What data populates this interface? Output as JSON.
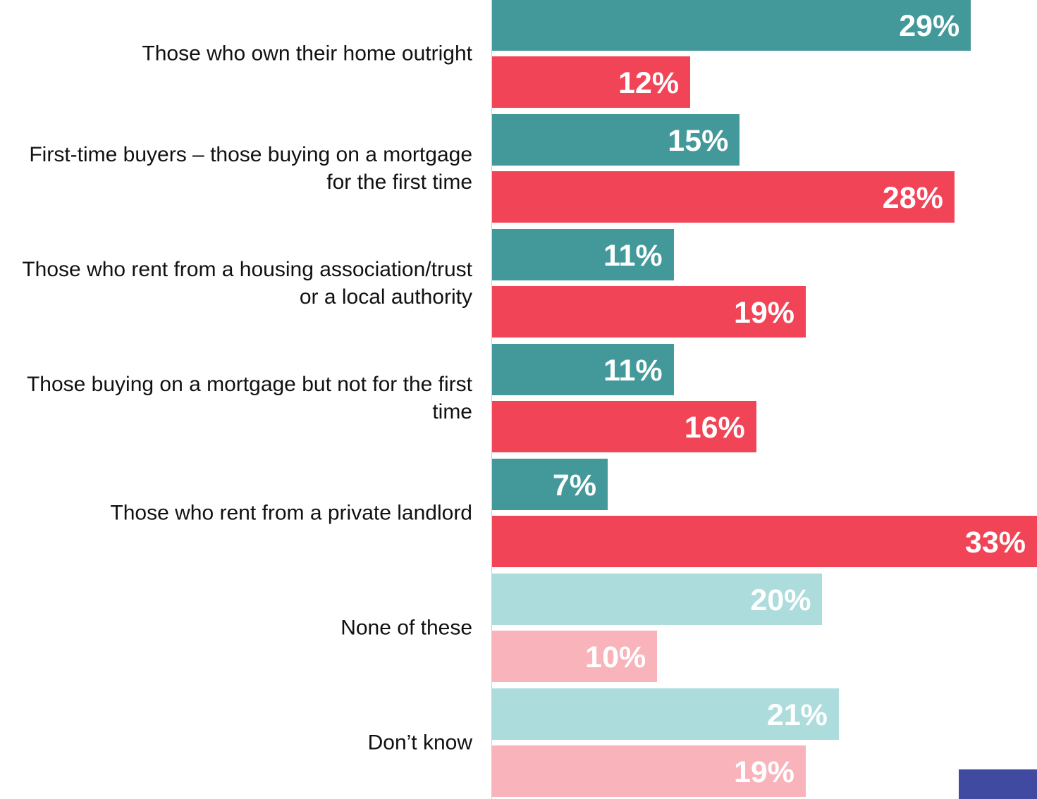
{
  "chart_data": {
    "type": "bar",
    "orientation": "horizontal",
    "categories": [
      "Those who own their home outright",
      "First-time buyers – those buying on a mortgage for the first time",
      "Those who rent from a housing association/trust or a local authority",
      "Those buying on a mortgage but not for the first time",
      "Those who rent from a private landlord",
      "None of these",
      "Don’t know"
    ],
    "series": [
      {
        "colors": [
          "#43989a",
          "#43989a",
          "#43989a",
          "#43989a",
          "#43989a",
          "#acdcdc",
          "#acdcdc"
        ],
        "values": [
          29,
          15,
          11,
          11,
          7,
          20,
          21
        ],
        "value_labels": [
          "29%",
          "15%",
          "11%",
          "11%",
          "7%",
          "20%",
          "21%"
        ]
      },
      {
        "colors": [
          "#f24457",
          "#f24457",
          "#f24457",
          "#f24457",
          "#f24457",
          "#f8b3bb",
          "#f8b3bb"
        ],
        "values": [
          12,
          28,
          19,
          16,
          33,
          10,
          19
        ],
        "value_labels": [
          "12%",
          "28%",
          "19%",
          "16%",
          "33%",
          "10%",
          "19%"
        ]
      }
    ],
    "xlim": [
      0,
      33
    ]
  }
}
